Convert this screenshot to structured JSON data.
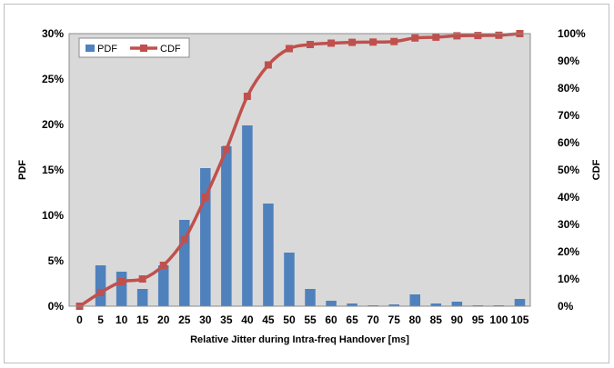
{
  "chart_data": {
    "type": "bar",
    "title": "",
    "xlabel": "Relative Jitter during Intra-freq Handover [ms]",
    "ylabel_left": "PDF",
    "ylabel_right": "CDF",
    "categories": [
      "0",
      "5",
      "10",
      "15",
      "20",
      "25",
      "30",
      "35",
      "40",
      "45",
      "50",
      "55",
      "60",
      "65",
      "70",
      "75",
      "80",
      "85",
      "90",
      "95",
      "100",
      "105"
    ],
    "ylim_left": [
      0,
      0.3
    ],
    "ylim_right": [
      0,
      1.0
    ],
    "yticks_left": [
      "0%",
      "5%",
      "10%",
      "15%",
      "20%",
      "25%",
      "30%"
    ],
    "yticks_right": [
      "0%",
      "10%",
      "20%",
      "30%",
      "40%",
      "50%",
      "60%",
      "70%",
      "80%",
      "90%",
      "100%"
    ],
    "grid": false,
    "legend_position": "top-left",
    "colors": {
      "pdf": "#4f81bd",
      "cdf": "#c0504d",
      "plot_bg": "#d9d9d9"
    },
    "series": [
      {
        "name": "PDF",
        "type": "bar",
        "axis": "left",
        "values": [
          0.0,
          0.045,
          0.038,
          0.019,
          0.045,
          0.095,
          0.152,
          0.176,
          0.199,
          0.113,
          0.059,
          0.019,
          0.006,
          0.003,
          0.001,
          0.002,
          0.013,
          0.003,
          0.005,
          0.001,
          0.001,
          0.008
        ]
      },
      {
        "name": "CDF",
        "type": "line",
        "axis": "right",
        "values": [
          0.0,
          0.05,
          0.09,
          0.1,
          0.15,
          0.245,
          0.4,
          0.575,
          0.77,
          0.885,
          0.945,
          0.96,
          0.965,
          0.968,
          0.969,
          0.971,
          0.984,
          0.987,
          0.992,
          0.993,
          0.994,
          1.0
        ]
      }
    ]
  }
}
